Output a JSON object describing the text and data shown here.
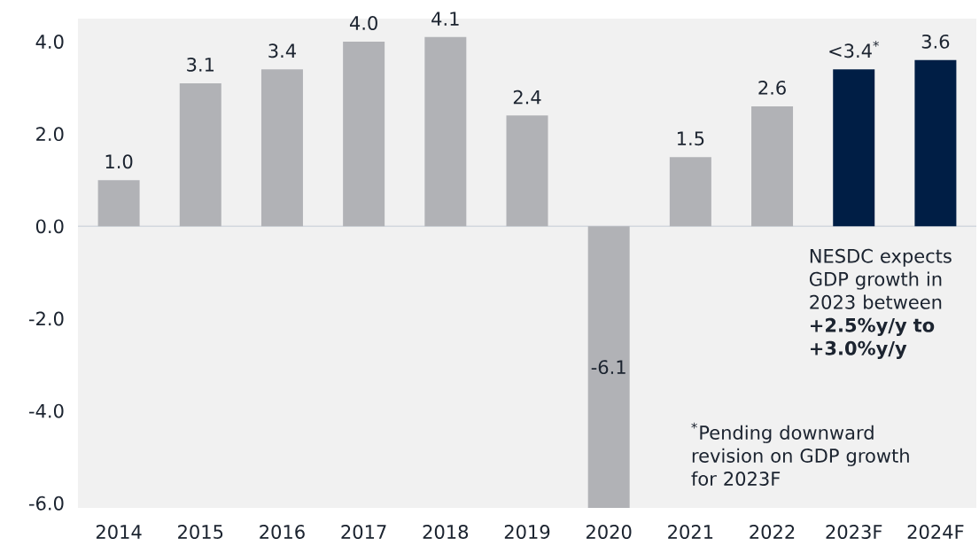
{
  "chart_data": {
    "type": "bar",
    "categories": [
      "2014",
      "2015",
      "2016",
      "2017",
      "2018",
      "2019",
      "2020",
      "2021",
      "2022",
      "2023F",
      "2024F"
    ],
    "values": [
      1.0,
      3.1,
      3.4,
      4.0,
      4.1,
      2.4,
      -6.1,
      1.5,
      2.6,
      3.4,
      3.6
    ],
    "colors": [
      "#b1b2b6",
      "#b1b2b6",
      "#b1b2b6",
      "#b1b2b6",
      "#b1b2b6",
      "#b1b2b6",
      "#b1b2b6",
      "#b1b2b6",
      "#b1b2b6",
      "#001e45",
      "#001e45"
    ],
    "value_labels": [
      "1.0",
      "3.1",
      "3.4",
      "4.0",
      "4.1",
      "2.4",
      "-6.1",
      "1.5",
      "2.6",
      "<3.4$^{*}$",
      "3.6"
    ],
    "ylim": [
      -6.1,
      4.5
    ],
    "yticks": [
      {
        "value": -6,
        "label": "-6.0"
      },
      {
        "value": -4,
        "label": "-4.0"
      },
      {
        "value": -2,
        "label": "-2.0"
      },
      {
        "value": 0,
        "label": "0.0"
      },
      {
        "value": 2,
        "label": "2.0"
      },
      {
        "value": 4,
        "label": "4.0"
      }
    ],
    "ref_lines": [
      {
        "axis": "y",
        "value": 0,
        "color": "#d3d8de"
      }
    ],
    "annotations": [
      "NESDC expects GDP growth in 2023 between **+2.5%y/y to +3.0%y/y**",
      "$^{*}$Pending downward revision on GDP growth for 2023F"
    ]
  }
}
